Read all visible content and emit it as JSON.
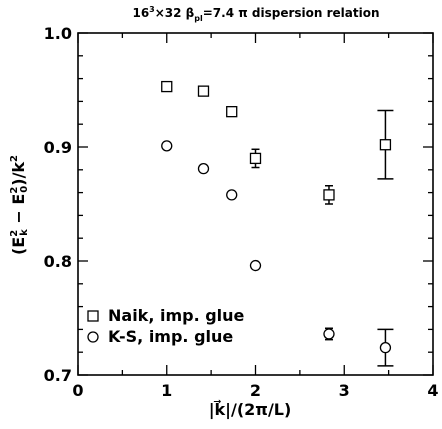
{
  "chart_data": {
    "type": "scatter",
    "title": "16³×32 β_pl=7.4   π dispersion relation",
    "xlabel": "|k⃗|/(2π/L)",
    "ylabel": "(E_k² − E_0²)/k²",
    "xlim": [
      0,
      4
    ],
    "ylim": [
      0.7,
      1.0
    ],
    "x_ticks": [
      "0",
      "1",
      "2",
      "3",
      "4"
    ],
    "y_ticks": [
      "0.7",
      "0.8",
      "0.9",
      "1.0"
    ],
    "legend_position": "bottom-left",
    "series": [
      {
        "name": "Naik, imp. glue",
        "marker": "square",
        "points": [
          {
            "x": 1.0,
            "y": 0.953,
            "err": 0.003
          },
          {
            "x": 1.414,
            "y": 0.949,
            "err": 0.003
          },
          {
            "x": 1.732,
            "y": 0.931,
            "err": 0.004
          },
          {
            "x": 2.0,
            "y": 0.89,
            "err": 0.008
          },
          {
            "x": 2.828,
            "y": 0.858,
            "err": 0.008
          },
          {
            "x": 3.464,
            "y": 0.902,
            "err": 0.03
          }
        ]
      },
      {
        "name": "K-S, imp. glue",
        "marker": "circle",
        "points": [
          {
            "x": 1.0,
            "y": 0.901,
            "err": 0.002
          },
          {
            "x": 1.414,
            "y": 0.881,
            "err": 0.002
          },
          {
            "x": 1.732,
            "y": 0.858,
            "err": 0.002
          },
          {
            "x": 2.0,
            "y": 0.796,
            "err": 0.002
          },
          {
            "x": 2.828,
            "y": 0.736,
            "err": 0.005
          },
          {
            "x": 3.464,
            "y": 0.724,
            "err": 0.016
          }
        ]
      }
    ]
  }
}
